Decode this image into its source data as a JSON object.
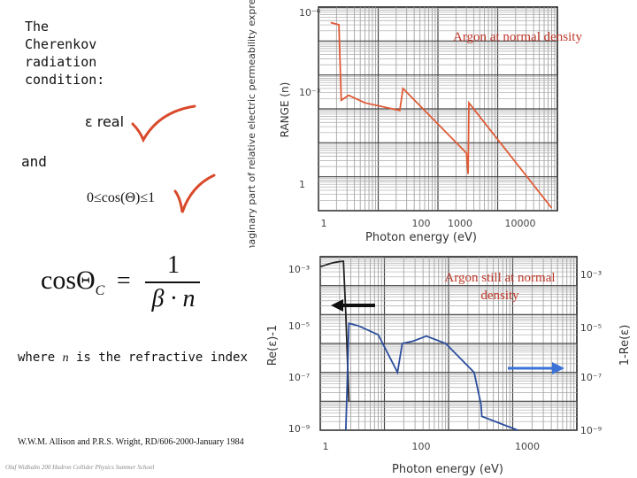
{
  "left": {
    "title": "The\nCherenkov\nradiation\ncondition:",
    "condition1": "ε real",
    "and": "and",
    "condition2": "0≤cos(Θ)≤1",
    "formula_lhs": "cosΘ",
    "formula_sub": "C",
    "formula_num": "1",
    "formula_den": "β · n",
    "where_prefix": "where ",
    "where_var": "n",
    "where_suffix": " is the refractive index",
    "reference": "W.W.M. Allison and P.R.S. Wright, RD/606-2000-January 1984",
    "footer": "Olaf Widhalm 200 Hadron Collider Physics Summer School",
    "check_color": "#d94a2b"
  },
  "chart_data": [
    {
      "type": "line",
      "title": "Argon at normal density",
      "xlabel": "Photon energy (eV)",
      "ylabel": "RANGE (n)",
      "ylabel2": "Imaginary part of relative electric permeability expressed as",
      "xscale": "log",
      "yscale": "log",
      "xlim": [
        10,
        100000
      ],
      "ylim": [
        1,
        1000000
      ],
      "x_ticks": [
        "1",
        "100",
        "1000",
        "10000"
      ],
      "y_ticks": [
        "10⁻⁶",
        "10⁻³",
        "1"
      ],
      "grid": true,
      "series": [
        {
          "color": "#e05a35",
          "points": [
            [
              16,
              350000
            ],
            [
              22,
              300000
            ],
            [
              24,
              1800
            ],
            [
              32,
              2500
            ],
            [
              60,
              1500
            ],
            [
              230,
              900
            ],
            [
              260,
              4000
            ],
            [
              3000,
              50
            ],
            [
              3200,
              12
            ],
            [
              3300,
              1500
            ],
            [
              80000,
              1.2
            ]
          ]
        }
      ]
    },
    {
      "type": "line",
      "title": "Argon still at normal density",
      "xlabel": "Photon energy (eV)",
      "ylabel": "Re(ε)-1",
      "ylabel_right": "1-Re(ε)",
      "xscale": "log",
      "yscale": "log",
      "xlim": [
        10,
        100000
      ],
      "ylim": [
        1e-09,
        0.001
      ],
      "x_ticks": [
        "1",
        "100",
        "1000"
      ],
      "y_ticks_left": [
        "10⁻³",
        "10⁻⁵",
        "10⁻⁷",
        "10⁻⁹"
      ],
      "y_ticks_right": [
        "10⁻³",
        "10⁻⁵",
        "10⁻⁷",
        "10⁻⁹"
      ],
      "grid": true,
      "series": [
        {
          "color": "#222222",
          "axis": "left",
          "points": [
            [
              10,
              0.00045
            ],
            [
              15,
              0.0006
            ],
            [
              20,
              0.00068
            ],
            [
              23,
              0.0007
            ],
            [
              25,
              1e-05
            ],
            [
              28,
              1e-08
            ]
          ]
        },
        {
          "color": "#2c4e9e",
          "axis": "right",
          "points": [
            [
              25,
              1e-09
            ],
            [
              28,
              5e-06
            ],
            [
              40,
              4e-06
            ],
            [
              80,
              2e-06
            ],
            [
              160,
              1e-07
            ],
            [
              190,
              1e-06
            ],
            [
              280,
              1.2e-06
            ],
            [
              450,
              1.8e-06
            ],
            [
              900,
              1e-06
            ],
            [
              2500,
              1e-07
            ],
            [
              3200,
              8e-09
            ],
            [
              3300,
              3e-09
            ],
            [
              12000,
              1e-09
            ]
          ]
        }
      ]
    }
  ]
}
